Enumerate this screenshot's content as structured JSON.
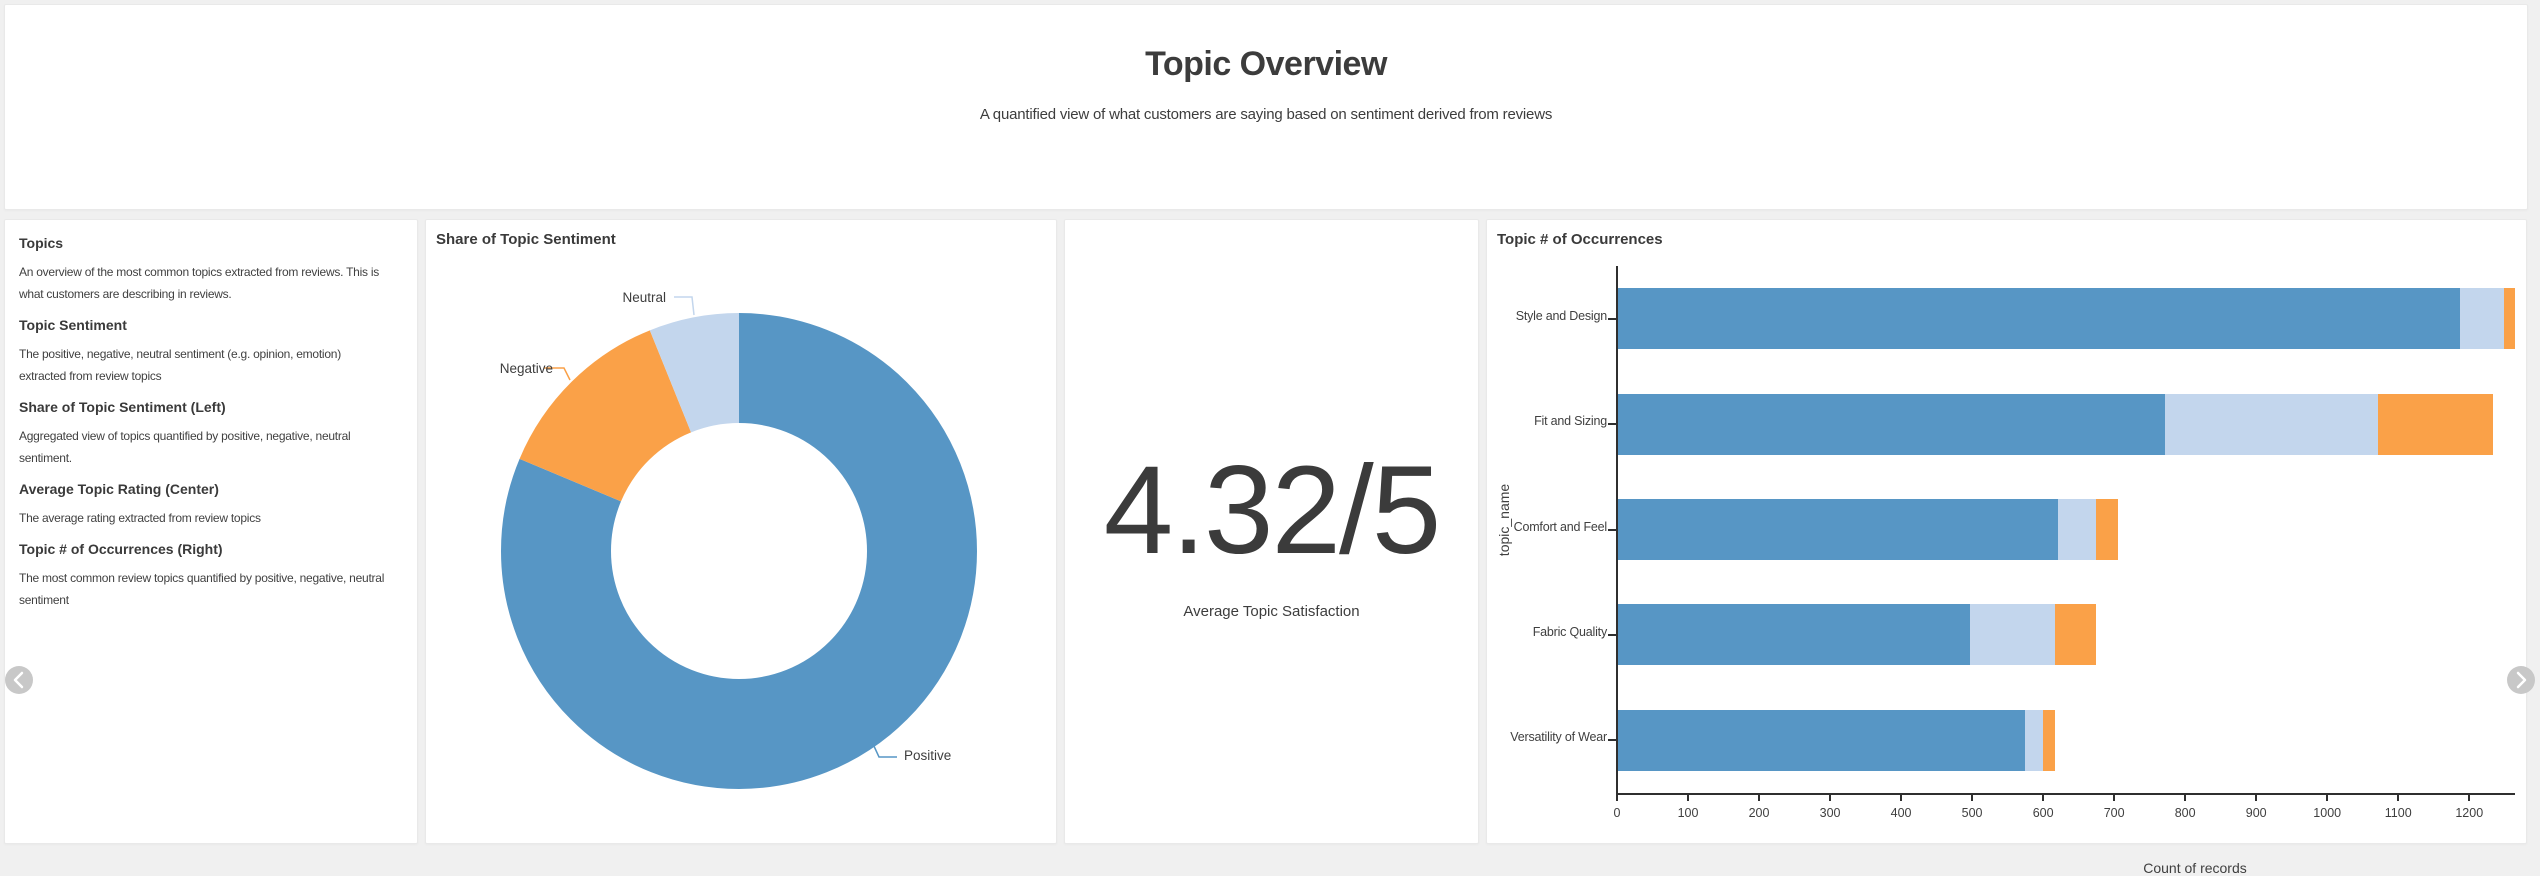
{
  "header": {
    "title": "Topic Overview",
    "subtitle": "A quantified view of what customers are saying based on sentiment derived from reviews"
  },
  "info_panel": {
    "sections": [
      {
        "heading": "Topics",
        "body": "An overview of the most common topics extracted from reviews. This is\nwhat customers are describing in reviews."
      },
      {
        "heading": "Topic Sentiment",
        "body": "The positive, negative, neutral sentiment (e.g. opinion, emotion)\nextracted from review topics"
      },
      {
        "heading": "Share of Topic Sentiment (Left)",
        "body": "Aggregated view of topics quantified by positive, negative, neutral\nsentiment."
      },
      {
        "heading": "Average Topic Rating (Center)",
        "body": "The average rating extracted from review topics"
      },
      {
        "heading": "Topic # of Occurrences (Right)",
        "body": "The most common review topics quantified by positive, negative, neutral\nsentiment"
      }
    ]
  },
  "kpi": {
    "value": "4.32/5",
    "caption": "Average Topic Satisfaction"
  },
  "nav": {
    "prev_icon": "chevron-left",
    "next_icon": "chevron-right"
  },
  "colors": {
    "positive": "#5796c5",
    "neutral": "#c3d6ed",
    "negative": "#faa148",
    "axis": "#2f2f2f",
    "page_bg": "#f0f0f0",
    "nav_circle": "#c8c8c8"
  },
  "chart_data": [
    {
      "type": "pie",
      "title": "Share of Topic Sentiment",
      "donut": true,
      "start_angle_deg": 0,
      "direction": "clockwise",
      "inner_radius_px": 128,
      "outer_radius_px": 238,
      "slices": [
        {
          "label": "Positive",
          "percent": 81.3,
          "color": "#5796c5"
        },
        {
          "label": "Negative",
          "percent": 12.55,
          "color": "#faa148"
        },
        {
          "label": "Neutral",
          "percent": 6.15,
          "color": "#c3d6ed"
        }
      ],
      "legend_position": "outside-labels-with-leader-lines"
    },
    {
      "type": "bar",
      "title": "Topic # of Occurrences",
      "orientation": "horizontal",
      "stacked": true,
      "categories": [
        "Style and Design",
        "Fit and Sizing",
        "Comfort and Feel",
        "Fabric Quality",
        "Versatility of Wear"
      ],
      "series": [
        {
          "name": "Positive",
          "color": "#5796c5",
          "values": [
            1185,
            770,
            620,
            496,
            573
          ]
        },
        {
          "name": "Neutral",
          "color": "#c3d6ed",
          "values": [
            62,
            300,
            53,
            119,
            26
          ]
        },
        {
          "name": "Negative",
          "color": "#faa148",
          "values": [
            16,
            162,
            31,
            58,
            17
          ]
        }
      ],
      "totals": [
        1263,
        1232,
        704,
        673,
        616
      ],
      "xlabel": "Count of records",
      "ylabel": "topic_name",
      "xlim": [
        0,
        1263
      ],
      "xticks": [
        0,
        100,
        200,
        300,
        400,
        500,
        600,
        700,
        800,
        900,
        1000,
        1100,
        1200
      ],
      "grid": false,
      "legend": "none"
    }
  ]
}
